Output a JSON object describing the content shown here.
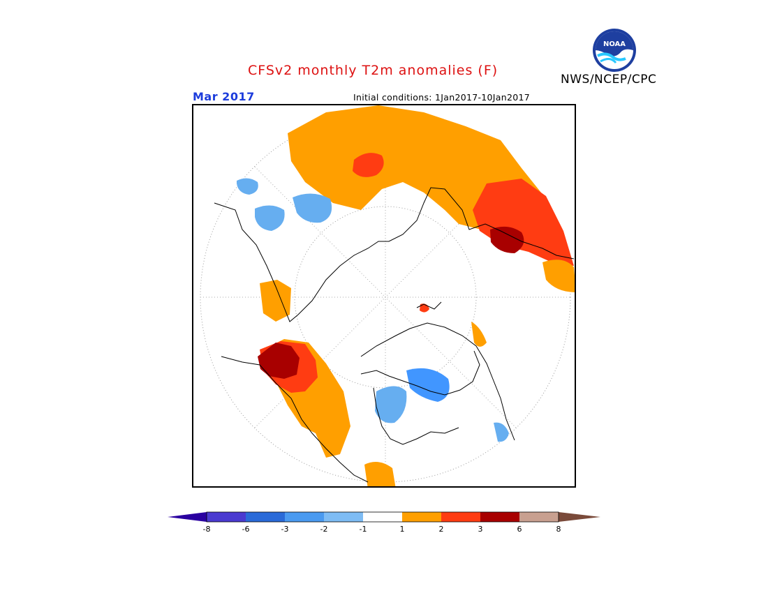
{
  "header": {
    "title": "CFSv2 monthly T2m anomalies (F)",
    "agency": "NWS/NCEP/CPC",
    "month": "Mar 2017",
    "initial_conditions": "Initial conditions: 1Jan2017-10Jan2017"
  },
  "logo": {
    "text": "NOAA",
    "icon": "noaa-logo"
  },
  "colors": {
    "title": "#dd1111",
    "month": "#1c3cdc",
    "warm_1_2": "#ff9f00",
    "warm_2_3": "#ff3c12",
    "warm_3_6": "#a80000",
    "cool_1_2": "#66aef0",
    "cool_2_3": "#4196ff",
    "coast": "#000000"
  },
  "legend": {
    "ticks": [
      "-8",
      "-6",
      "-3",
      "-2",
      "-1",
      "1",
      "2",
      "3",
      "6",
      "8"
    ],
    "colors": [
      "#2a00a0",
      "#4a3ad0",
      "#2a6ad8",
      "#4a9af0",
      "#7ebcf4",
      "#ffffff",
      "#ff9f00",
      "#ff3c12",
      "#a80000",
      "#c8a090",
      "#7a4a3a"
    ]
  }
}
